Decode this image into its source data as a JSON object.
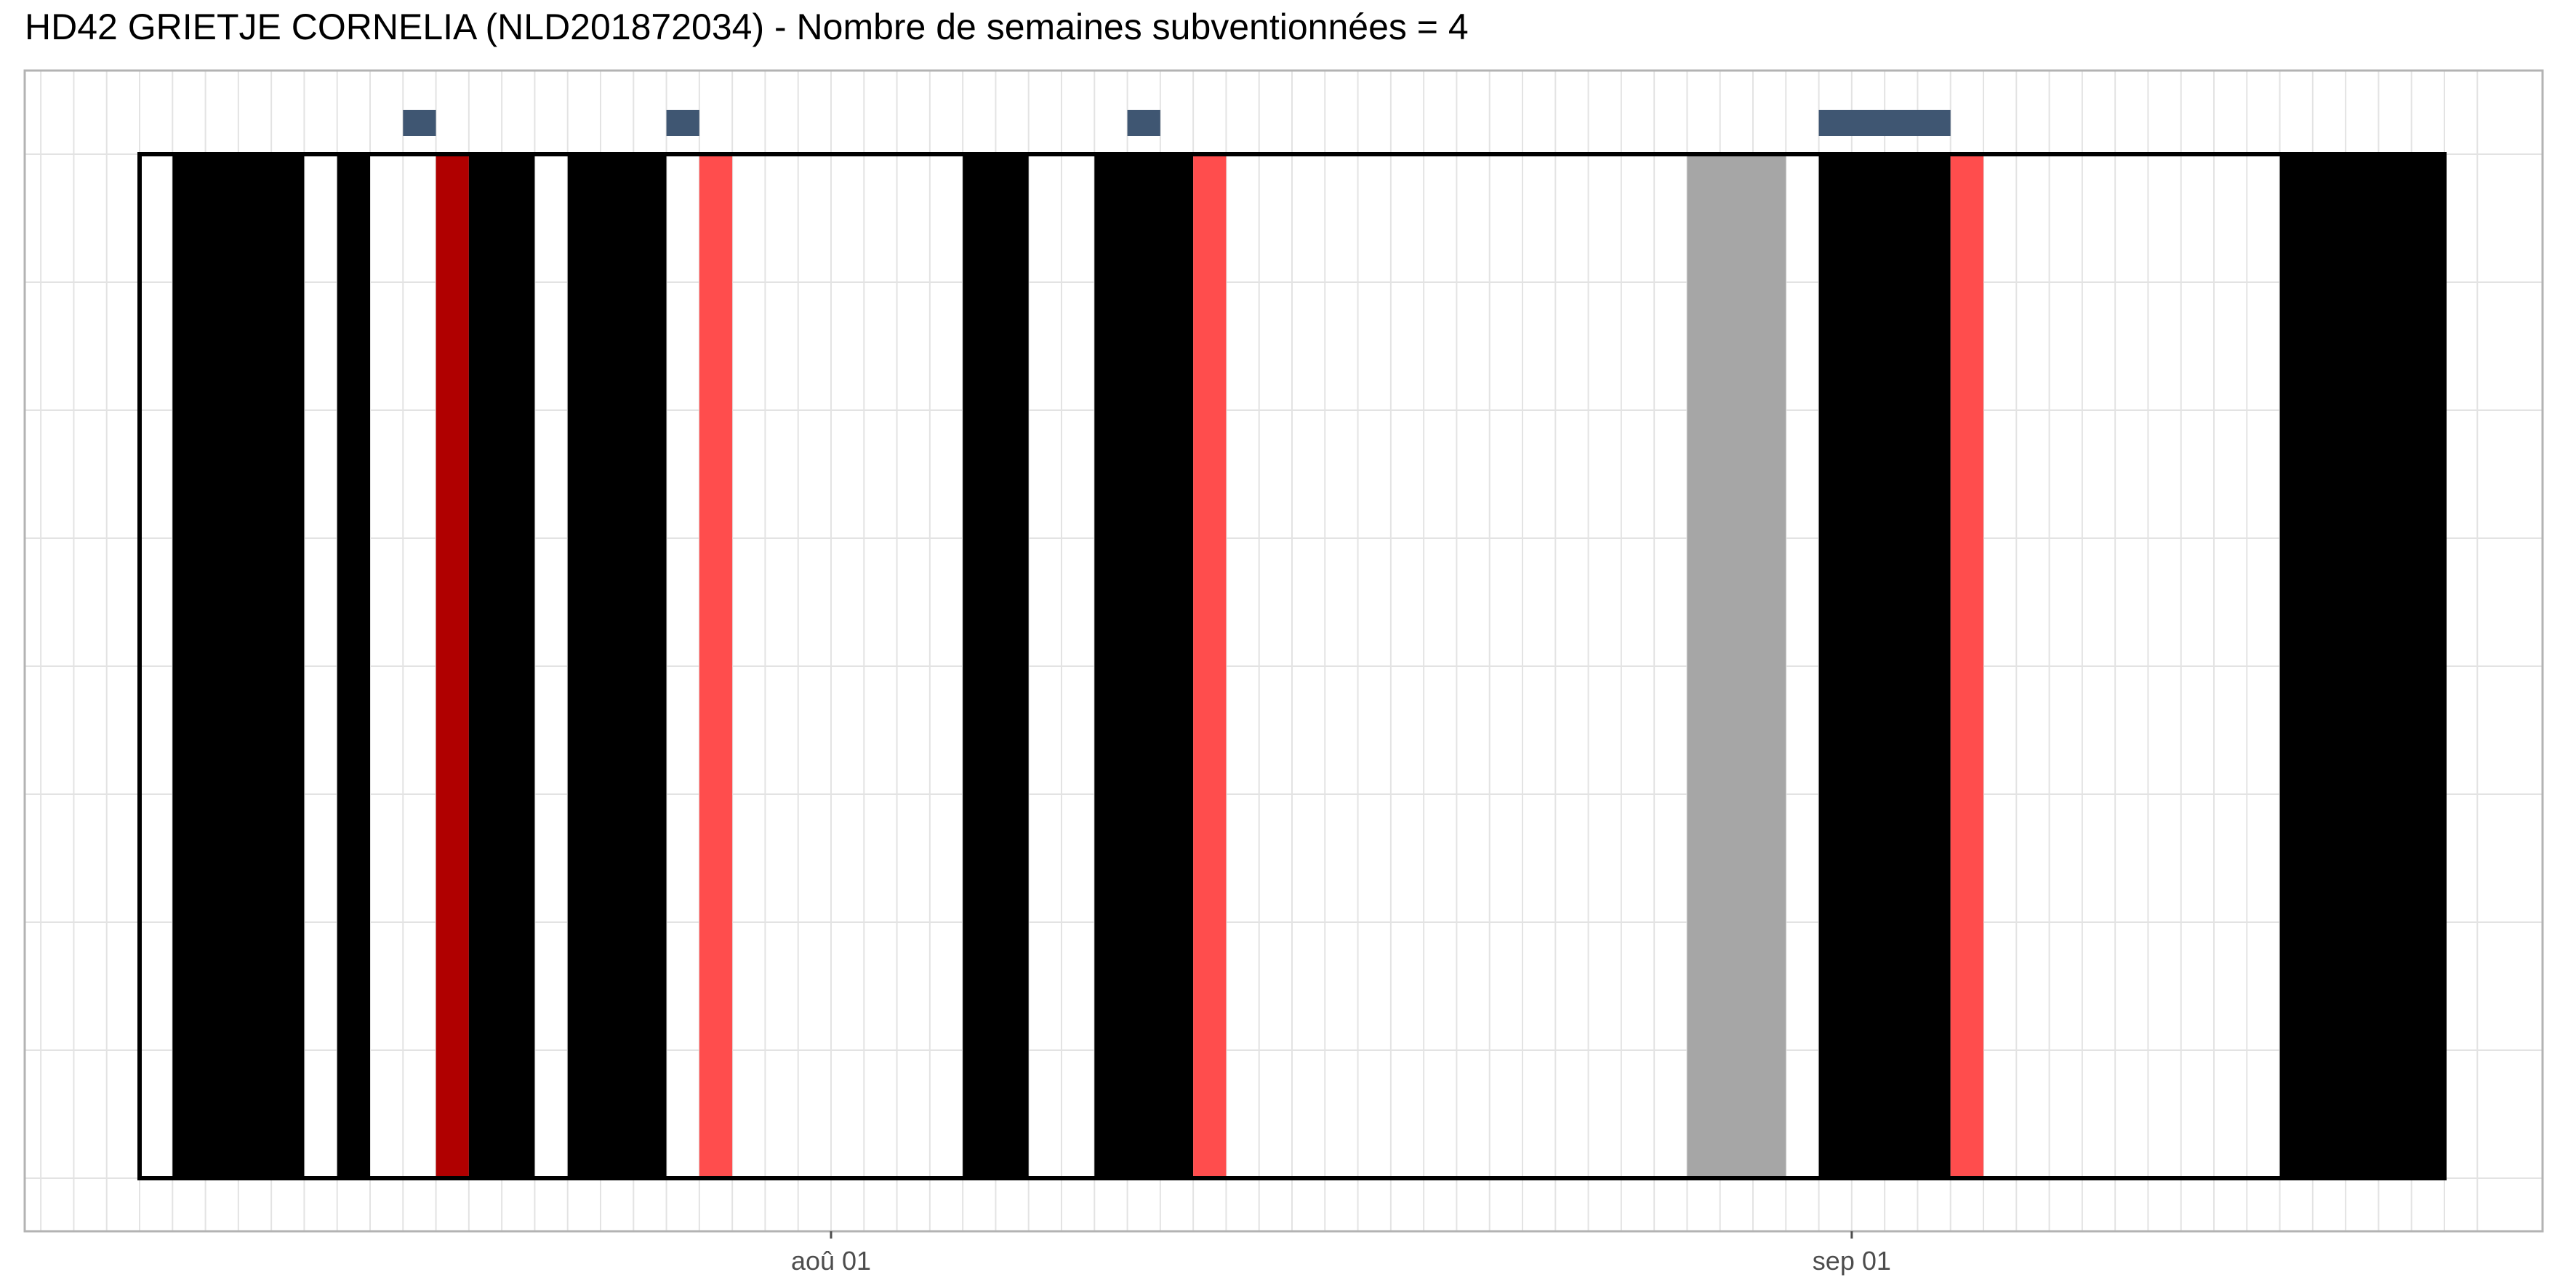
{
  "chart_data": {
    "type": "timeline",
    "title": "HD42 GRIETJE CORNELIA (NLD201872034) - Nombre de semaines subventionnées = 4",
    "x_axis": {
      "type": "date",
      "range": [
        "2023-07-08",
        "2023-09-20"
      ],
      "tick_labels": [
        {
          "date": "2023-08-01",
          "label": "aoû 01"
        },
        {
          "date": "2023-09-01",
          "label": "sep 01"
        }
      ],
      "minor_grid": "daily",
      "major_grid": true
    },
    "y_axis": {
      "tick_labels": [],
      "grid": true
    },
    "frame": {
      "start": "2023-07-11",
      "end": "2023-09-19"
    },
    "colors": {
      "black": "#000000",
      "grey": "#a6a6a6",
      "red_dark": "#b00000",
      "red_light": "#ff4d4d",
      "marker": "#3f5672",
      "grid": "#e3e3e3"
    },
    "intervals": [
      {
        "start": "2023-07-12",
        "end": "2023-07-16",
        "color": "black"
      },
      {
        "start": "2023-07-17",
        "end": "2023-07-18",
        "color": "black"
      },
      {
        "start": "2023-07-20",
        "end": "2023-07-21",
        "color": "red_dark"
      },
      {
        "start": "2023-07-21",
        "end": "2023-07-23",
        "color": "black"
      },
      {
        "start": "2023-07-24",
        "end": "2023-07-27",
        "color": "black"
      },
      {
        "start": "2023-07-28",
        "end": "2023-07-29",
        "color": "red_light"
      },
      {
        "start": "2023-08-05",
        "end": "2023-08-07",
        "color": "black"
      },
      {
        "start": "2023-08-09",
        "end": "2023-08-12",
        "color": "black"
      },
      {
        "start": "2023-08-12",
        "end": "2023-08-13",
        "color": "red_light"
      },
      {
        "start": "2023-08-27",
        "end": "2023-08-30",
        "color": "grey"
      },
      {
        "start": "2023-08-31",
        "end": "2023-09-04",
        "color": "black"
      },
      {
        "start": "2023-09-04",
        "end": "2023-09-05",
        "color": "red_light"
      },
      {
        "start": "2023-09-14",
        "end": "2023-09-19",
        "color": "black"
      }
    ],
    "markers": [
      {
        "start": "2023-07-19",
        "end": "2023-07-20"
      },
      {
        "start": "2023-07-27",
        "end": "2023-07-28"
      },
      {
        "start": "2023-08-10",
        "end": "2023-08-11"
      },
      {
        "start": "2023-08-31",
        "end": "2023-09-04"
      }
    ]
  }
}
